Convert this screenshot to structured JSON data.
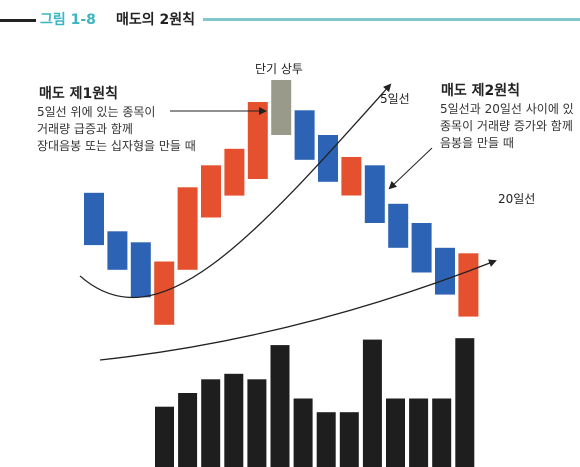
{
  "header": {
    "figure_label": "그림 1-8",
    "title": "매도의 2원칙",
    "accent_color": "#3bb5bf"
  },
  "rule1": {
    "title": "매도 제1원칙",
    "lines": [
      "5일선 위에 있는 종목이",
      "거래량 급증과 함께",
      "장대음봉 또는 십자형을 만들 때"
    ]
  },
  "rule2": {
    "title": "매도 제2원칙",
    "lines": [
      "5일선과 20일선 사이에 있",
      "종목이 거래량 증가와 함께",
      "음봉을 만들 때"
    ]
  },
  "labels": {
    "peak": "단기 상투",
    "ma5": "5일선",
    "ma20": "20일선"
  },
  "colors": {
    "up_candle": "#e5512f",
    "down_candle": "#2d63b4",
    "peak_candle": "#9a9a8a",
    "volume": "#1e1e1e"
  },
  "chart_data": {
    "type": "candlestick+volume",
    "candles": [
      {
        "dir": "down",
        "open": 0.59,
        "close": 0.4
      },
      {
        "dir": "down",
        "open": 0.45,
        "close": 0.31
      },
      {
        "dir": "down",
        "open": 0.41,
        "close": 0.21
      },
      {
        "dir": "up",
        "open": 0.11,
        "close": 0.34
      },
      {
        "dir": "up",
        "open": 0.31,
        "close": 0.61
      },
      {
        "dir": "up",
        "open": 0.5,
        "close": 0.69
      },
      {
        "dir": "up",
        "open": 0.58,
        "close": 0.75
      },
      {
        "dir": "up",
        "open": 0.64,
        "close": 0.92
      },
      {
        "dir": "peak",
        "open": 1.0,
        "close": 0.8
      },
      {
        "dir": "down",
        "open": 0.89,
        "close": 0.71
      },
      {
        "dir": "down",
        "open": 0.8,
        "close": 0.63
      },
      {
        "dir": "up",
        "open": 0.58,
        "close": 0.72
      },
      {
        "dir": "down",
        "open": 0.69,
        "close": 0.48
      },
      {
        "dir": "down",
        "open": 0.55,
        "close": 0.39
      },
      {
        "dir": "down",
        "open": 0.48,
        "close": 0.3
      },
      {
        "dir": "down",
        "open": 0.39,
        "close": 0.22
      },
      {
        "dir": "up",
        "open": 0.14,
        "close": 0.37
      }
    ],
    "volume": [
      0.44,
      0.54,
      0.64,
      0.68,
      0.64,
      0.89,
      0.5,
      0.4,
      0.4,
      0.93,
      0.5,
      0.5,
      0.5,
      0.94
    ],
    "ma5_path": [
      [
        0.0,
        0.33
      ],
      [
        0.25,
        0.09
      ],
      [
        0.55,
        0.45
      ],
      [
        1.0,
        1.0
      ]
    ],
    "ma20_path": [
      [
        0.0,
        0.0
      ],
      [
        0.5,
        0.13
      ],
      [
        1.0,
        0.6
      ]
    ]
  }
}
